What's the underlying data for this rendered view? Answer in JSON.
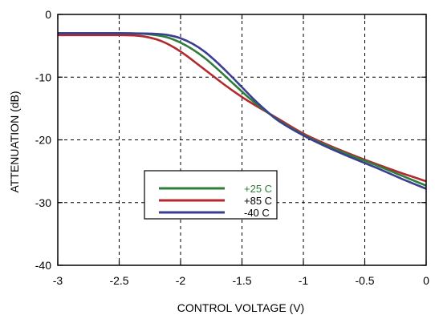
{
  "chart_data": {
    "type": "line",
    "title": "",
    "xlabel": "CONTROL VOLTAGE (V)",
    "ylabel": "ATTENUATION (dB)",
    "xlim": [
      -3,
      0
    ],
    "ylim": [
      -40,
      0
    ],
    "x_ticks": [
      -3,
      -2.5,
      -2,
      -1.5,
      -1,
      -0.5,
      0
    ],
    "x_tick_labels": [
      "-3",
      "-2.5",
      "-2",
      "-1.5",
      "-1",
      "-0.5",
      "0"
    ],
    "y_ticks": [
      0,
      -10,
      -20,
      -30,
      -40
    ],
    "y_tick_labels": [
      "0",
      "-10",
      "-20",
      "-30",
      "-40"
    ],
    "grid": true,
    "grid_style": "dashed",
    "legend_position": "lower-left-center",
    "series": [
      {
        "name": "+25 C",
        "color": "#2e7d3a",
        "label_color": "#2e7d3a",
        "x": [
          -3.0,
          -2.5,
          -2.3,
          -2.2,
          -2.1,
          -2.0,
          -1.9,
          -1.8,
          -1.7,
          -1.6,
          -1.5,
          -1.4,
          -1.2,
          -1.0,
          -0.8,
          -0.6,
          -0.4,
          -0.2,
          0.0
        ],
        "y": [
          -3.0,
          -3.0,
          -3.1,
          -3.3,
          -3.7,
          -4.5,
          -5.6,
          -7.0,
          -8.7,
          -10.5,
          -12.3,
          -14.0,
          -16.9,
          -19.2,
          -21.0,
          -22.6,
          -24.1,
          -25.7,
          -27.3
        ]
      },
      {
        "name": "+85 C",
        "color": "#b22a2f",
        "label_color": "#000000",
        "x": [
          -3.0,
          -2.5,
          -2.35,
          -2.25,
          -2.15,
          -2.05,
          -1.95,
          -1.85,
          -1.75,
          -1.65,
          -1.55,
          -1.45,
          -1.2,
          -1.0,
          -0.8,
          -0.6,
          -0.4,
          -0.2,
          0.0
        ],
        "y": [
          -3.3,
          -3.3,
          -3.4,
          -3.7,
          -4.3,
          -5.3,
          -6.6,
          -8.1,
          -9.6,
          -11.1,
          -12.5,
          -13.8,
          -16.7,
          -19.0,
          -20.8,
          -22.4,
          -23.9,
          -25.3,
          -26.6
        ]
      },
      {
        "name": "-40 C",
        "color": "#3b3f8f",
        "label_color": "#000000",
        "x": [
          -3.0,
          -2.5,
          -2.2,
          -2.1,
          -2.0,
          -1.9,
          -1.8,
          -1.7,
          -1.6,
          -1.5,
          -1.4,
          -1.3,
          -1.2,
          -1.0,
          -0.8,
          -0.6,
          -0.4,
          -0.2,
          0.0
        ],
        "y": [
          -3.0,
          -3.0,
          -3.1,
          -3.3,
          -3.8,
          -4.7,
          -6.0,
          -7.7,
          -9.6,
          -11.6,
          -13.6,
          -15.4,
          -17.0,
          -19.3,
          -21.2,
          -22.9,
          -24.5,
          -26.2,
          -27.8
        ]
      }
    ]
  }
}
